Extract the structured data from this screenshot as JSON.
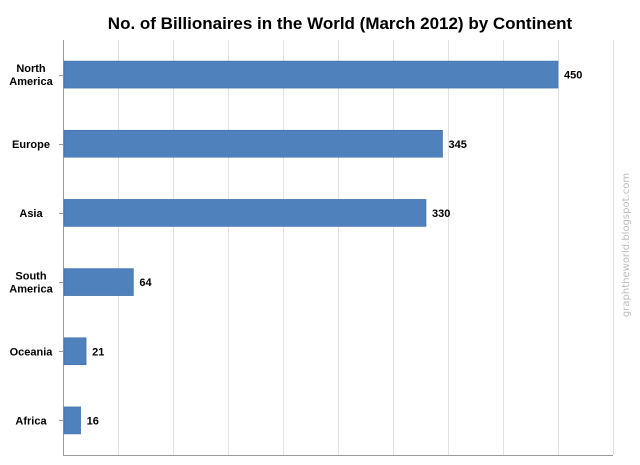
{
  "chart_data": {
    "type": "bar",
    "orientation": "horizontal",
    "title": "No. of Billionaires in the World (March 2012) by Continent",
    "categories": [
      [
        "North",
        "America"
      ],
      [
        "Europe"
      ],
      [
        "Asia"
      ],
      [
        "South",
        "America"
      ],
      [
        "Oceania"
      ],
      [
        "Africa"
      ]
    ],
    "values": [
      450,
      345,
      330,
      64,
      21,
      16
    ],
    "xlim": [
      0,
      500
    ],
    "grid_step": 50,
    "grid": true,
    "legend": "none",
    "xlabel": "",
    "ylabel": "",
    "bar_color": "#4f81bd"
  },
  "watermark": "graphtheworld.blogspot.com"
}
